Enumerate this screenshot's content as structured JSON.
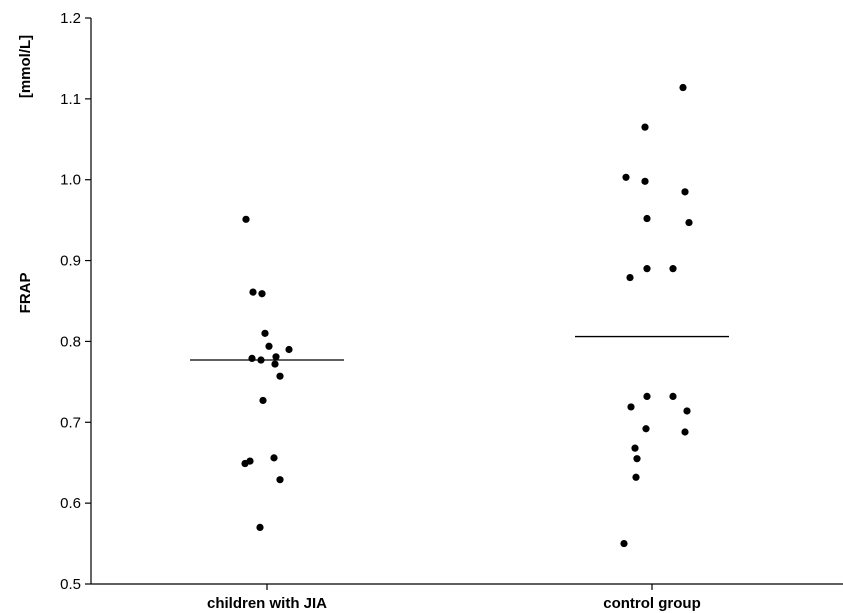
{
  "chart_data": {
    "type": "scatter",
    "title": "",
    "xlabel": "",
    "ylabel": "FRAP",
    "ylabel_unit": "[mmol/L]",
    "ylim": [
      0.5,
      1.2
    ],
    "yticks": [
      "0.5",
      "0.6",
      "0.7",
      "0.8",
      "0.9",
      "1.0",
      "1.1",
      "1.2"
    ],
    "grid": false,
    "categories": [
      "children with JIA",
      "control group"
    ],
    "series": [
      {
        "category": "children with JIA",
        "mean": 0.777,
        "points": [
          {
            "x": -0.21,
            "y": 0.951
          },
          {
            "x": -0.14,
            "y": 0.861
          },
          {
            "x": -0.05,
            "y": 0.859
          },
          {
            "x": -0.02,
            "y": 0.81
          },
          {
            "x": 0.02,
            "y": 0.794
          },
          {
            "x": 0.22,
            "y": 0.79
          },
          {
            "x": -0.15,
            "y": 0.779
          },
          {
            "x": 0.09,
            "y": 0.781
          },
          {
            "x": -0.06,
            "y": 0.777
          },
          {
            "x": 0.08,
            "y": 0.772
          },
          {
            "x": 0.13,
            "y": 0.757
          },
          {
            "x": -0.04,
            "y": 0.727
          },
          {
            "x": 0.07,
            "y": 0.656
          },
          {
            "x": -0.17,
            "y": 0.652
          },
          {
            "x": -0.22,
            "y": 0.649
          },
          {
            "x": 0.13,
            "y": 0.629
          },
          {
            "x": -0.07,
            "y": 0.57
          }
        ]
      },
      {
        "category": "control group",
        "mean": 0.806,
        "points": [
          {
            "x": 0.31,
            "y": 1.114
          },
          {
            "x": -0.07,
            "y": 1.065
          },
          {
            "x": -0.26,
            "y": 1.003
          },
          {
            "x": -0.07,
            "y": 0.998
          },
          {
            "x": 0.33,
            "y": 0.985
          },
          {
            "x": -0.05,
            "y": 0.952
          },
          {
            "x": 0.37,
            "y": 0.947
          },
          {
            "x": -0.05,
            "y": 0.89
          },
          {
            "x": 0.21,
            "y": 0.89
          },
          {
            "x": -0.22,
            "y": 0.879
          },
          {
            "x": -0.05,
            "y": 0.732
          },
          {
            "x": 0.21,
            "y": 0.732
          },
          {
            "x": -0.21,
            "y": 0.719
          },
          {
            "x": 0.35,
            "y": 0.714
          },
          {
            "x": -0.06,
            "y": 0.692
          },
          {
            "x": 0.33,
            "y": 0.688
          },
          {
            "x": -0.17,
            "y": 0.668
          },
          {
            "x": -0.15,
            "y": 0.655
          },
          {
            "x": -0.16,
            "y": 0.632
          },
          {
            "x": -0.28,
            "y": 0.55
          }
        ]
      }
    ]
  }
}
